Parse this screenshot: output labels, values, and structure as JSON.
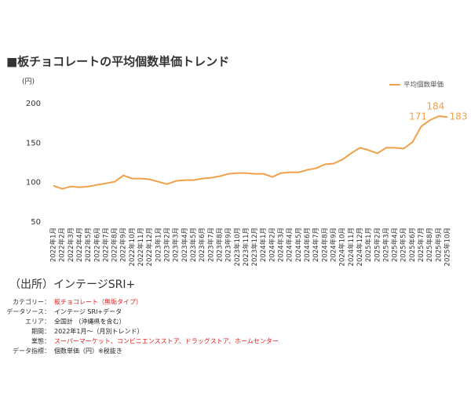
{
  "chart_data": {
    "type": "line",
    "title": "■板チョコレートの平均個数単価トレンド",
    "y_label": "(円)",
    "categories": [
      "2022年1月",
      "2022年2月",
      "2022年3月",
      "2022年4月",
      "2022年5月",
      "2022年6月",
      "2022年7月",
      "2022年8月",
      "2022年9月",
      "2022年10月",
      "2022年11月",
      "2022年12月",
      "2023年1月",
      "2023年2月",
      "2023年3月",
      "2023年4月",
      "2023年5月",
      "2023年6月",
      "2023年7月",
      "2023年8月",
      "2023年9月",
      "2023年10月",
      "2023年11月",
      "2023年12月",
      "2024年1月",
      "2024年2月",
      "2024年3月",
      "2024年4月",
      "2024年5月",
      "2024年6月",
      "2024年7月",
      "2024年8月",
      "2024年9月",
      "2024年10月",
      "2024年11月",
      "2024年12月",
      "2025年1月",
      "2025年2月",
      "2025年3月",
      "2025年4月",
      "2025年5月",
      "2025年6月",
      "2025年7月",
      "2025年8月",
      "2025年9月",
      "2025年10月"
    ],
    "series": [
      {
        "name": "平均個数単価",
        "color": "#f0a048",
        "values": [
          96,
          92,
          95,
          94,
          95,
          97,
          99,
          101,
          109,
          105,
          105,
          104,
          101,
          98,
          102,
          103,
          103,
          105,
          106,
          108,
          111,
          112,
          112,
          111,
          111,
          107,
          112,
          113,
          113,
          116,
          118,
          123,
          124,
          129,
          137,
          144,
          141,
          137,
          144,
          144,
          143,
          151,
          171,
          179,
          184,
          183
        ],
        "value_labels": [
          null,
          null,
          null,
          null,
          null,
          null,
          null,
          null,
          null,
          null,
          null,
          null,
          null,
          null,
          null,
          null,
          null,
          null,
          null,
          null,
          null,
          null,
          null,
          null,
          null,
          null,
          null,
          null,
          null,
          null,
          null,
          null,
          null,
          null,
          null,
          null,
          null,
          null,
          null,
          null,
          null,
          null,
          "171",
          null,
          "184",
          "183"
        ]
      }
    ],
    "ylim": [
      50,
      200
    ],
    "yticks": [
      50,
      100,
      150,
      200
    ],
    "grid": false,
    "legend": "top-right"
  },
  "notes": {
    "source": "（出所）インテージSRI+",
    "rows": [
      {
        "label": "カテゴリー：",
        "value": "板チョコレート（無垢タイプ）",
        "color": "#e0201c"
      },
      {
        "label": "データソース：",
        "value": "インテージ SRI+データ",
        "color": "#222222"
      },
      {
        "label": "エリア：",
        "value": "全国計 （沖縄県を含む）",
        "color": "#222222"
      },
      {
        "label": "期間：",
        "value": "2022年1月～（月別トレンド）",
        "color": "#222222"
      },
      {
        "label": "業態：",
        "value": "スーパーマーケット、コンビニエンスストア、ドラッグストア、ホームセンター",
        "color": "#e0201c"
      },
      {
        "label": "データ指標：",
        "value": "個数単価（円）※税抜き",
        "color": "#222222"
      }
    ]
  }
}
